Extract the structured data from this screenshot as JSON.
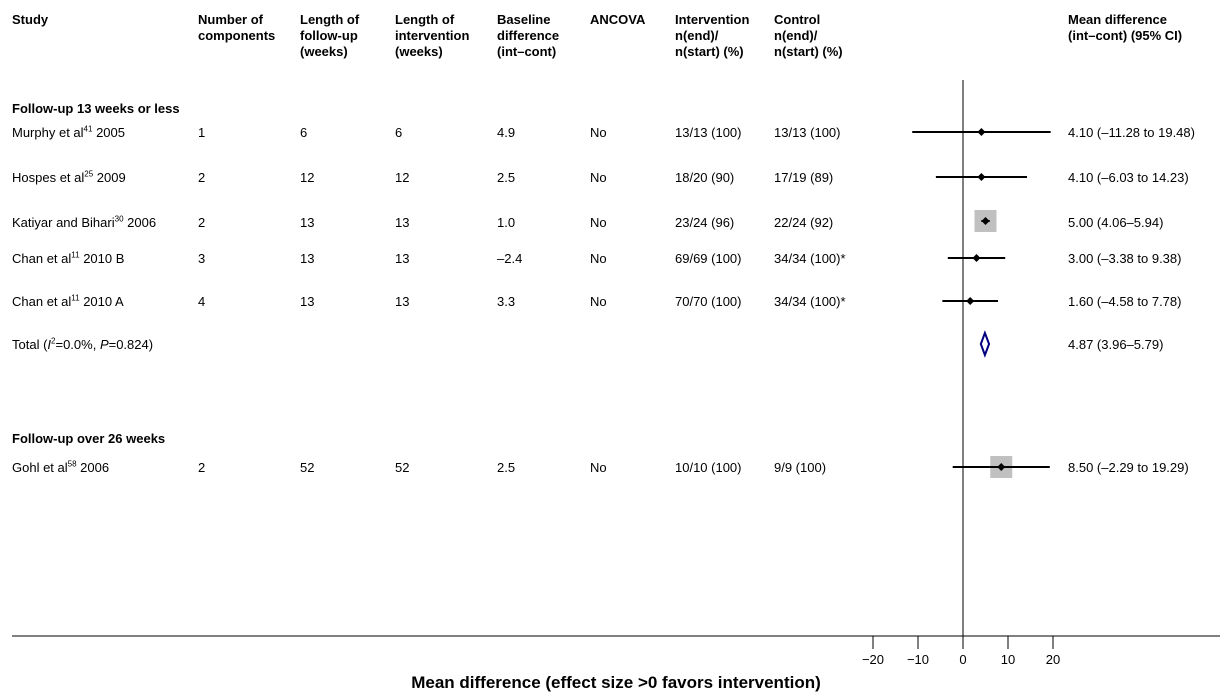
{
  "headers": {
    "study": "Study",
    "components": "Number of\ncomponents",
    "followup": "Length of\nfollow-up\n(weeks)",
    "intervention_length": "Length of\nintervention\n(weeks)",
    "baseline": "Baseline\ndifference\n(int–cont)",
    "ancova": "ANCOVA",
    "int_n": "Intervention\nn(end)/\nn(start) (%)",
    "ctrl_n": "Control\nn(end)/\nn(start) (%)",
    "md": "Mean difference\n(int–cont) (95% CI)"
  },
  "sections": [
    {
      "title": "Follow-up 13 weeks or less",
      "studies": [
        {
          "name": "Murphy et al",
          "ref": "41",
          "year": " 2005",
          "components": "1",
          "followup": "6",
          "intervention": "6",
          "baseline": "4.9",
          "ancova": "No",
          "int_n": "13/13 (100)",
          "ctrl_n": "13/13 (100)",
          "ci_text": "4.10 (–11.28 to 19.48)"
        },
        {
          "name": "Hospes et al",
          "ref": "25",
          "year": " 2009",
          "components": "2",
          "followup": "12",
          "intervention": "12",
          "baseline": "2.5",
          "ancova": "No",
          "int_n": "18/20 (90)",
          "ctrl_n": "17/19 (89)",
          "ci_text": "4.10 (–6.03 to 14.23)"
        },
        {
          "name": "Katiyar and Bihari",
          "ref": "30",
          "year": " 2006",
          "components": "2",
          "followup": "13",
          "intervention": "13",
          "baseline": "1.0",
          "ancova": "No",
          "int_n": "23/24 (96)",
          "ctrl_n": "22/24 (92)",
          "ci_text": "5.00 (4.06–5.94)"
        },
        {
          "name": "Chan et al",
          "ref": "11",
          "year": " 2010 B",
          "components": "3",
          "followup": "13",
          "intervention": "13",
          "baseline": "–2.4",
          "ancova": "No",
          "int_n": "69/69 (100)",
          "ctrl_n": "34/34 (100)*",
          "ci_text": "3.00 (–3.38 to 9.38)"
        },
        {
          "name": "Chan et al",
          "ref": "11",
          "year": " 2010 A",
          "components": "4",
          "followup": "13",
          "intervention": "13",
          "baseline": "3.3",
          "ancova": "No",
          "int_n": "70/70 (100)",
          "ctrl_n": "34/34 (100)*",
          "ci_text": "1.60 (–4.58 to 7.78)"
        }
      ],
      "total": {
        "prefix": "Total (",
        "i2_sym": "I",
        "i2_sup": "2",
        "mid": "=0.0%, ",
        "p_sym": "P",
        "suffix": "=0.824)",
        "ci_text": "4.87 (3.96–5.79)"
      }
    },
    {
      "title": "Follow-up over 26 weeks",
      "studies": [
        {
          "name": "Gohl et al",
          "ref": "58",
          "year": " 2006",
          "components": "2",
          "followup": "52",
          "intervention": "52",
          "baseline": "2.5",
          "ancova": "No",
          "int_n": "10/10 (100)",
          "ctrl_n": "9/9 (100)",
          "ci_text": "8.50 (–2.29 to 19.29)"
        }
      ]
    }
  ],
  "chart_data": {
    "type": "forest",
    "xlabel": "Mean difference (effect size >0 favors intervention)",
    "xticks": [
      -20,
      -10,
      0,
      10,
      20
    ],
    "xtick_labels": [
      "−20",
      "−10",
      "0",
      "10",
      "20"
    ],
    "xlim": [
      -20,
      20
    ],
    "null_line": 0,
    "colors": {
      "point": "#000000",
      "box": "#c0c0c0",
      "diamond": "#000080"
    },
    "studies": [
      {
        "label": "Murphy et al 2005",
        "mean": 4.1,
        "lower": -11.28,
        "upper": 19.48,
        "weight_box": false
      },
      {
        "label": "Hospes et al 2009",
        "mean": 4.1,
        "lower": -6.03,
        "upper": 14.23,
        "weight_box": false
      },
      {
        "label": "Katiyar and Bihari 2006",
        "mean": 5.0,
        "lower": 4.06,
        "upper": 5.94,
        "weight_box": true
      },
      {
        "label": "Chan et al 2010 B",
        "mean": 3.0,
        "lower": -3.38,
        "upper": 9.38,
        "weight_box": false
      },
      {
        "label": "Chan et al 2010 A",
        "mean": 1.6,
        "lower": -4.58,
        "upper": 7.78,
        "weight_box": false
      },
      {
        "label": "Gohl et al 2006",
        "mean": 8.5,
        "lower": -2.29,
        "upper": 19.29,
        "weight_box": true
      }
    ],
    "pooled": [
      {
        "label": "Total",
        "mean": 4.87,
        "lower": 3.96,
        "upper": 5.79
      }
    ]
  }
}
